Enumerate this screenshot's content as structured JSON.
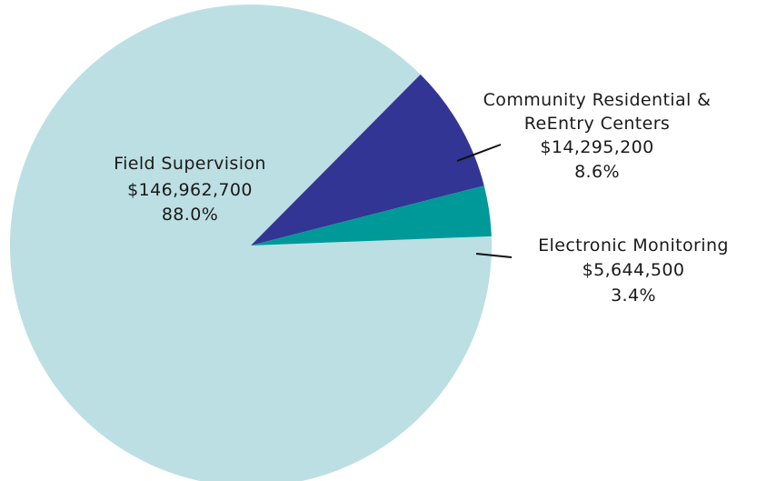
{
  "chart_data": {
    "type": "pie",
    "title": "",
    "slices": [
      {
        "label_lines": [
          "Field Supervision"
        ],
        "amount": "$146,962,700",
        "percent_label": "88.0%",
        "value": 146962700,
        "color": "#bcdfe3"
      },
      {
        "label_lines": [
          "Community Residential &",
          "ReEntry Centers"
        ],
        "amount": "$14,295,200",
        "percent_label": "8.6%",
        "value": 14295200,
        "color": "#333594"
      },
      {
        "label_lines": [
          "Electronic Monitoring"
        ],
        "amount": "$5,644,500",
        "percent_label": "3.4%",
        "value": 5644500,
        "color": "#009999"
      }
    ]
  }
}
